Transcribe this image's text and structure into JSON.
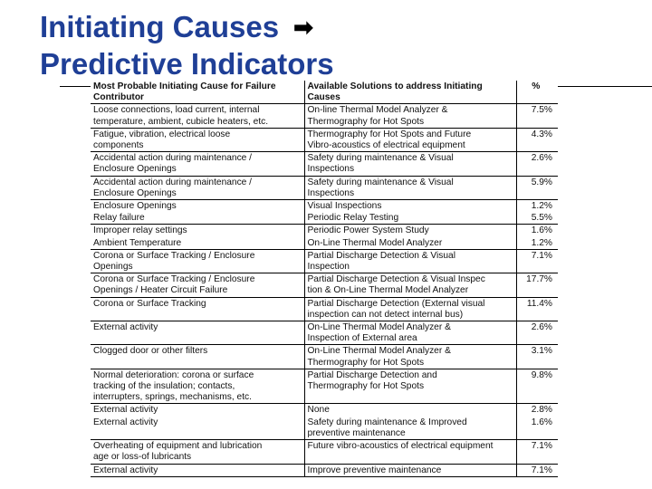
{
  "title": {
    "line1": "Initiating Causes",
    "arrow": "➡",
    "line2": "Predictive Indicators"
  },
  "table": {
    "headers": {
      "cause": "Most Probable Initiating Cause for Failure\nContributor",
      "solution": "Available Solutions to address Initiating\nCauses",
      "percent": "%"
    },
    "rows": [
      {
        "cause": "Loose connections, load current, internal\ntemperature, ambient, cubicle heaters, etc.",
        "solution": "On-line Thermal Model Analyzer &\nThermography for Hot Spots",
        "percent": "7.5%"
      },
      {
        "cause": "Fatigue, vibration, electrical loose\ncomponents",
        "solution": "Thermography for Hot Spots and Future\nVibro-acoustics of electrical equipment",
        "percent": "4.3%"
      },
      {
        "cause": "Accidental action during maintenance /\nEnclosure Openings",
        "solution": "Safety during maintenance & Visual\nInspections",
        "percent": "2.6%"
      },
      {
        "cause": "Accidental action during maintenance /\nEnclosure Openings",
        "solution": "Safety during maintenance & Visual\nInspections",
        "percent": "5.9%"
      },
      {
        "cause": "Enclosure Openings",
        "solution": "Visual Inspections",
        "percent": "1.2%",
        "nb": true
      },
      {
        "cause": "Relay failure",
        "solution": "Periodic Relay Testing",
        "percent": "5.5%"
      },
      {
        "cause": "Improper relay settings",
        "solution": "Periodic Power System Study",
        "percent": "1.6%",
        "nb": true
      },
      {
        "cause": "Ambient Temperature",
        "solution": "On-Line Thermal Model Analyzer",
        "percent": "1.2%"
      },
      {
        "cause": "Corona or Surface Tracking / Enclosure\nOpenings",
        "solution": "Partial Discharge Detection & Visual\nInspection",
        "percent": "7.1%"
      },
      {
        "cause": "Corona or Surface Tracking / Enclosure\nOpenings / Heater Circuit Failure",
        "solution": "Partial Discharge Detection & Visual Inspec\ntion & On-Line Thermal Model Analyzer",
        "percent": "17.7%"
      },
      {
        "cause": "Corona or Surface Tracking",
        "solution": "Partial Discharge Detection (External visual\ninspection can not detect internal bus)",
        "percent": "11.4%"
      },
      {
        "cause": "External activity",
        "solution": "On-Line Thermal Model Analyzer &\nInspection of External area",
        "percent": "2.6%"
      },
      {
        "cause": "Clogged door or other filters",
        "solution": "On-Line Thermal Model Analyzer &\nThermography for Hot Spots",
        "percent": "3.1%"
      },
      {
        "cause": "Normal deterioration: corona or surface\ntracking of the insulation; contacts,\ninterrupters, springs, mechanisms, etc.",
        "solution": "Partial Discharge Detection and\nThermography for Hot Spots",
        "percent": "9.8%"
      },
      {
        "cause": "External activity",
        "solution": "None",
        "percent": "2.8%",
        "nb": true
      },
      {
        "cause": "External activity",
        "solution": "Safety during maintenance & Improved\npreventive maintenance",
        "percent": "1.6%"
      },
      {
        "cause": "Overheating of equipment and lubrication\nage or loss-of lubricants",
        "solution": "Future vibro-acoustics of electrical equipment",
        "percent": "7.1%"
      },
      {
        "cause": "External activity",
        "solution": "Improve preventive maintenance",
        "percent": "7.1%"
      }
    ]
  }
}
